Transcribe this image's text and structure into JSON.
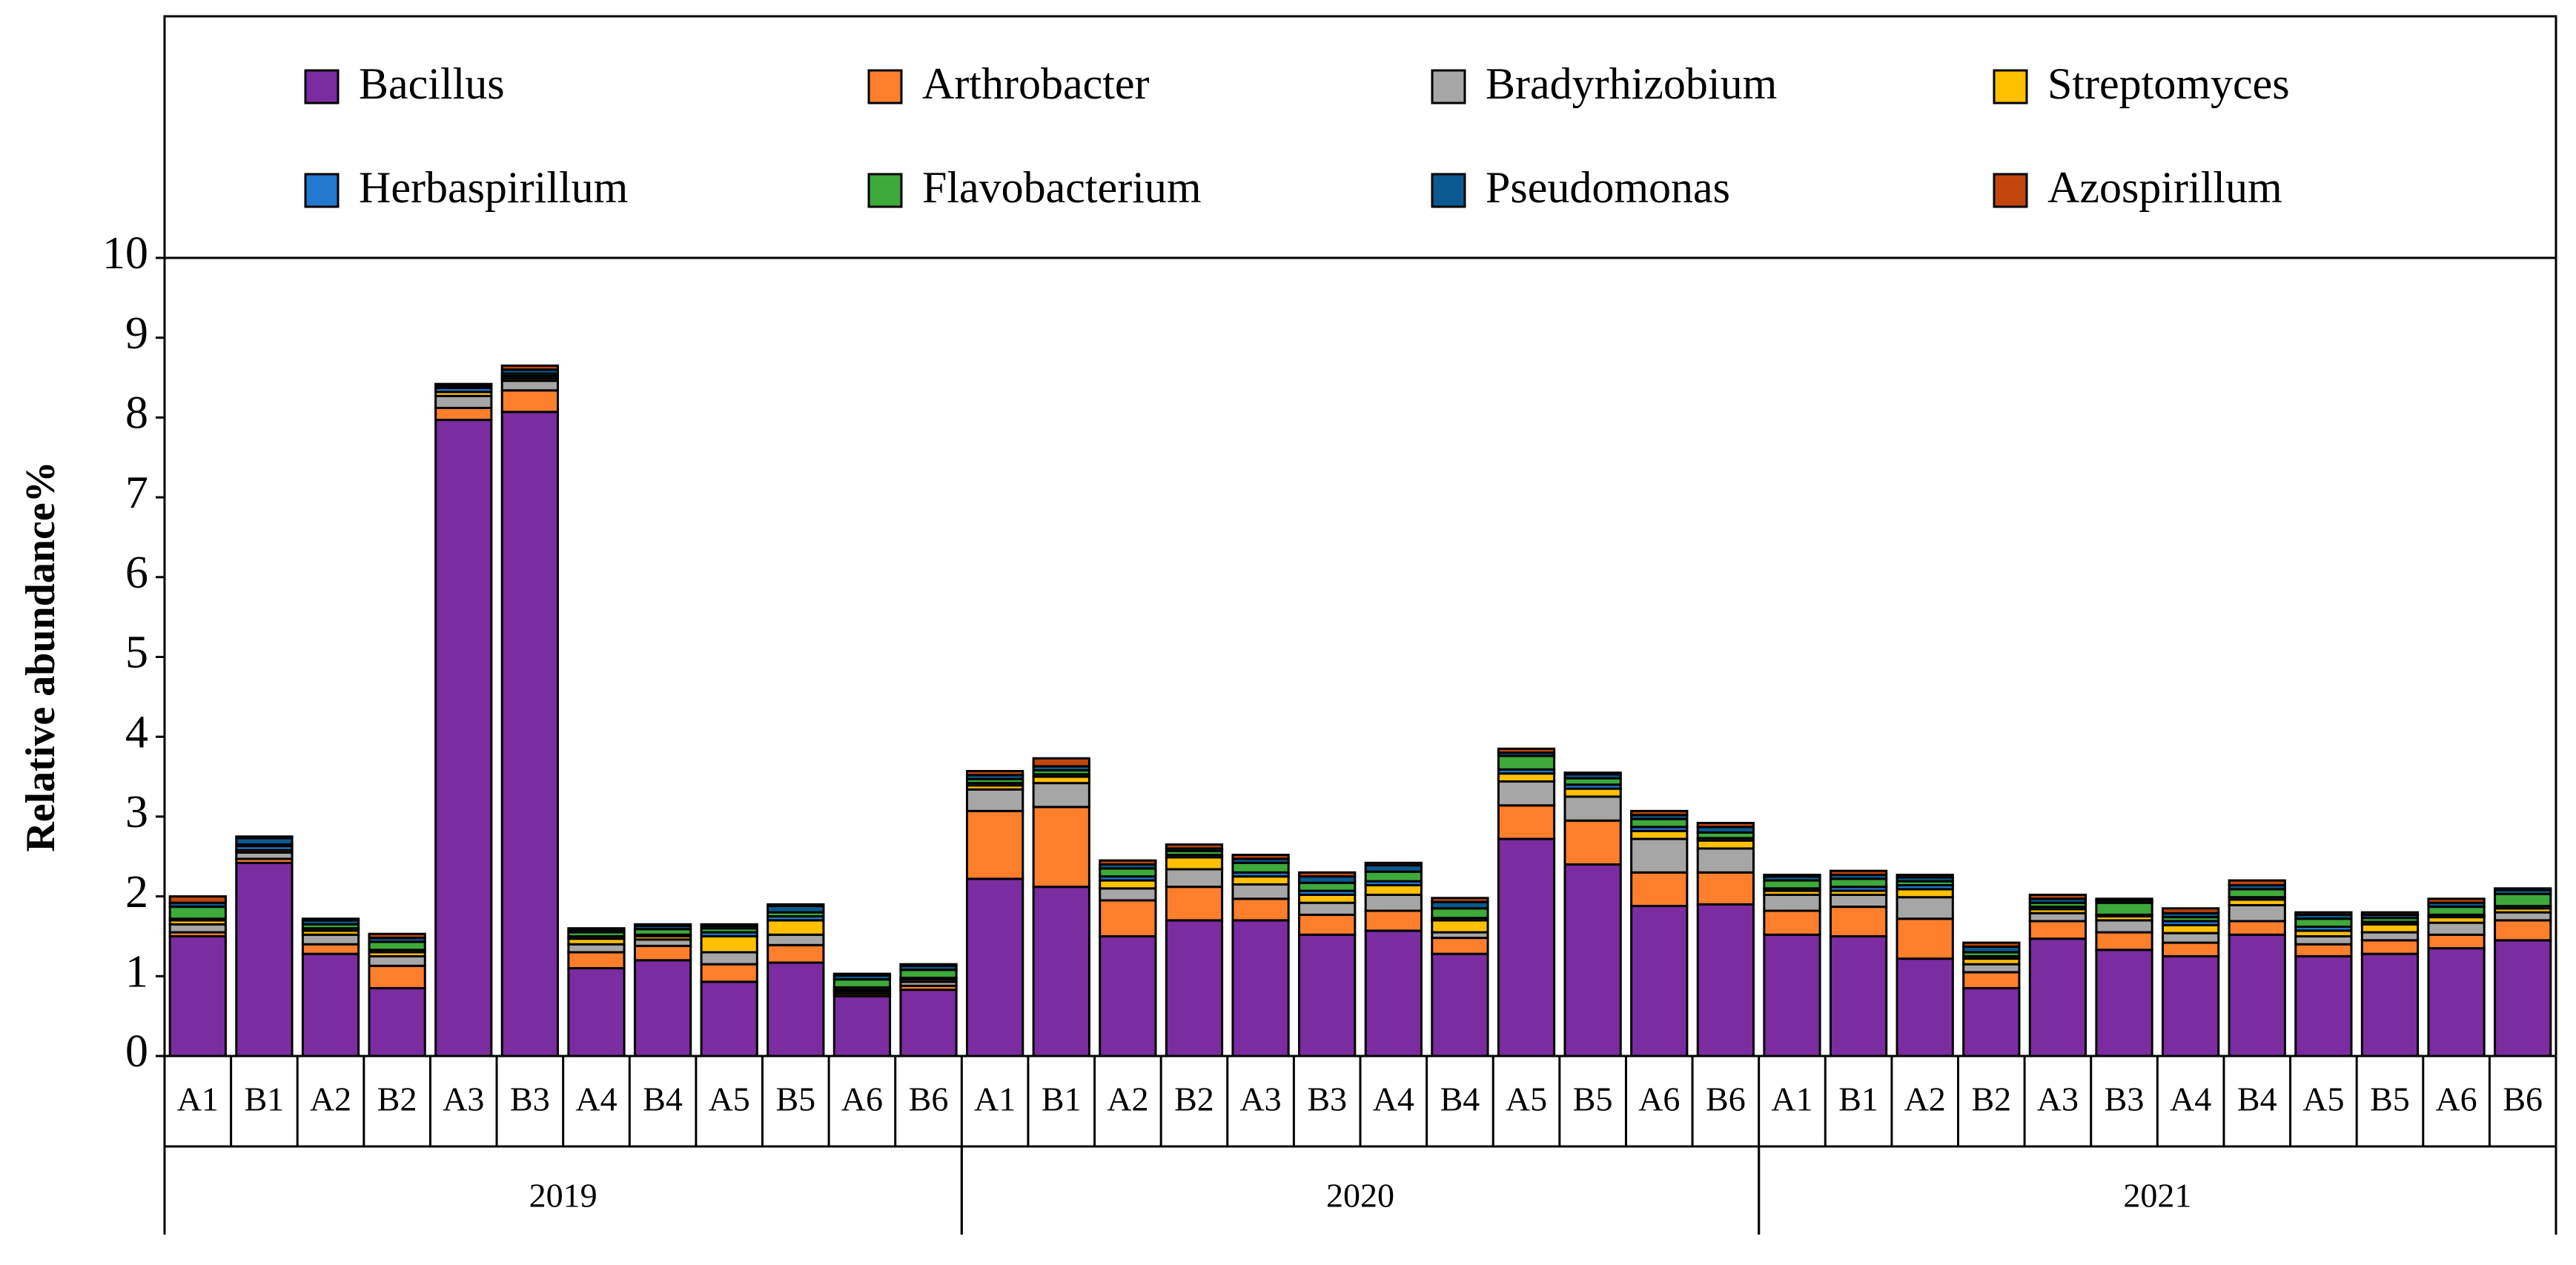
{
  "chart_data": {
    "type": "stacked_bar",
    "y_label": "Relative abundance%",
    "categories": [
      "A1",
      "B1",
      "A2",
      "B2",
      "A3",
      "B3",
      "A4",
      "B4",
      "A5",
      "B5",
      "A6",
      "B6",
      "A1",
      "B1",
      "A2",
      "B2",
      "A3",
      "B3",
      "A4",
      "B4",
      "A5",
      "B5",
      "A6",
      "B6",
      "A1",
      "B1",
      "A2",
      "B2",
      "A3",
      "B3",
      "A4",
      "B4",
      "A5",
      "B5",
      "A6",
      "B6"
    ],
    "groups": [
      "2019",
      "2020",
      "2021"
    ],
    "ylim": [
      0,
      10
    ],
    "yticks": [
      0,
      1,
      2,
      3,
      4,
      5,
      6,
      7,
      8,
      9,
      10
    ],
    "series": [
      {
        "name": "Bacillus",
        "color": "#7b2ca0",
        "values": [
          1.5,
          2.42,
          1.28,
          0.85,
          7.97,
          8.07,
          1.1,
          1.2,
          0.93,
          1.17,
          0.75,
          0.83,
          2.22,
          2.12,
          1.5,
          1.7,
          1.7,
          1.52,
          1.57,
          1.28,
          2.72,
          2.4,
          1.88,
          1.9,
          1.52,
          1.5,
          1.22,
          0.85,
          1.47,
          1.33,
          1.25,
          1.52,
          1.25,
          1.28,
          1.35,
          1.45
        ]
      },
      {
        "name": "Arthrobacter",
        "color": "#fd7f2c",
        "values": [
          0.05,
          0.05,
          0.12,
          0.28,
          0.15,
          0.27,
          0.2,
          0.18,
          0.22,
          0.22,
          0.03,
          0.05,
          0.85,
          1.0,
          0.45,
          0.42,
          0.27,
          0.25,
          0.25,
          0.2,
          0.42,
          0.55,
          0.42,
          0.4,
          0.3,
          0.37,
          0.5,
          0.2,
          0.22,
          0.22,
          0.17,
          0.17,
          0.15,
          0.17,
          0.17,
          0.25
        ]
      },
      {
        "name": "Bradyrhizobium",
        "color": "#a6a6a6",
        "values": [
          0.1,
          0.08,
          0.12,
          0.12,
          0.15,
          0.12,
          0.1,
          0.08,
          0.15,
          0.13,
          0.03,
          0.05,
          0.27,
          0.3,
          0.15,
          0.22,
          0.18,
          0.15,
          0.2,
          0.07,
          0.3,
          0.3,
          0.42,
          0.3,
          0.2,
          0.15,
          0.27,
          0.1,
          0.1,
          0.15,
          0.12,
          0.2,
          0.1,
          0.1,
          0.15,
          0.1
        ]
      },
      {
        "name": "Streptomyces",
        "color": "#ffc000",
        "values": [
          0.05,
          0.03,
          0.05,
          0.05,
          0.05,
          0.03,
          0.07,
          0.04,
          0.2,
          0.18,
          0.02,
          0.03,
          0.05,
          0.08,
          0.1,
          0.15,
          0.1,
          0.1,
          0.12,
          0.15,
          0.1,
          0.1,
          0.1,
          0.1,
          0.05,
          0.05,
          0.1,
          0.07,
          0.05,
          0.05,
          0.1,
          0.07,
          0.07,
          0.1,
          0.07,
          0.05
        ]
      },
      {
        "name": "Herbaspirillum",
        "color": "#2378d0",
        "values": [
          0.02,
          0.05,
          0.03,
          0.03,
          0.05,
          0.03,
          0.03,
          0.02,
          0.05,
          0.05,
          0.03,
          0.02,
          0.03,
          0.03,
          0.05,
          0.03,
          0.05,
          0.05,
          0.05,
          0.03,
          0.05,
          0.05,
          0.05,
          0.03,
          0.03,
          0.05,
          0.05,
          0.03,
          0.03,
          0.02,
          0.05,
          0.03,
          0.05,
          0.03,
          0.03,
          0.03
        ]
      },
      {
        "name": "Flavobacterium",
        "color": "#3daa3a",
        "values": [
          0.15,
          0.02,
          0.05,
          0.1,
          0.02,
          0.03,
          0.05,
          0.07,
          0.05,
          0.05,
          0.1,
          0.1,
          0.05,
          0.05,
          0.1,
          0.05,
          0.12,
          0.1,
          0.12,
          0.12,
          0.17,
          0.08,
          0.1,
          0.07,
          0.1,
          0.1,
          0.05,
          0.05,
          0.05,
          0.15,
          0.05,
          0.1,
          0.1,
          0.05,
          0.1,
          0.15
        ]
      },
      {
        "name": "Pseudomonas",
        "color": "#0a5a8f",
        "values": [
          0.05,
          0.08,
          0.05,
          0.05,
          0.02,
          0.05,
          0.03,
          0.04,
          0.03,
          0.08,
          0.05,
          0.05,
          0.05,
          0.05,
          0.05,
          0.03,
          0.05,
          0.08,
          0.08,
          0.08,
          0.04,
          0.05,
          0.05,
          0.07,
          0.05,
          0.05,
          0.05,
          0.07,
          0.05,
          0.03,
          0.05,
          0.05,
          0.05,
          0.04,
          0.05,
          0.05
        ]
      },
      {
        "name": "Azospirillum",
        "color": "#c0460c",
        "values": [
          0.08,
          0.02,
          0.02,
          0.05,
          0.01,
          0.05,
          0.02,
          0.02,
          0.02,
          0.02,
          0.02,
          0.02,
          0.05,
          0.1,
          0.05,
          0.05,
          0.05,
          0.05,
          0.03,
          0.05,
          0.05,
          0.02,
          0.05,
          0.05,
          0.02,
          0.05,
          0.03,
          0.05,
          0.05,
          0.02,
          0.06,
          0.06,
          0.03,
          0.03,
          0.05,
          0.02
        ]
      }
    ]
  }
}
